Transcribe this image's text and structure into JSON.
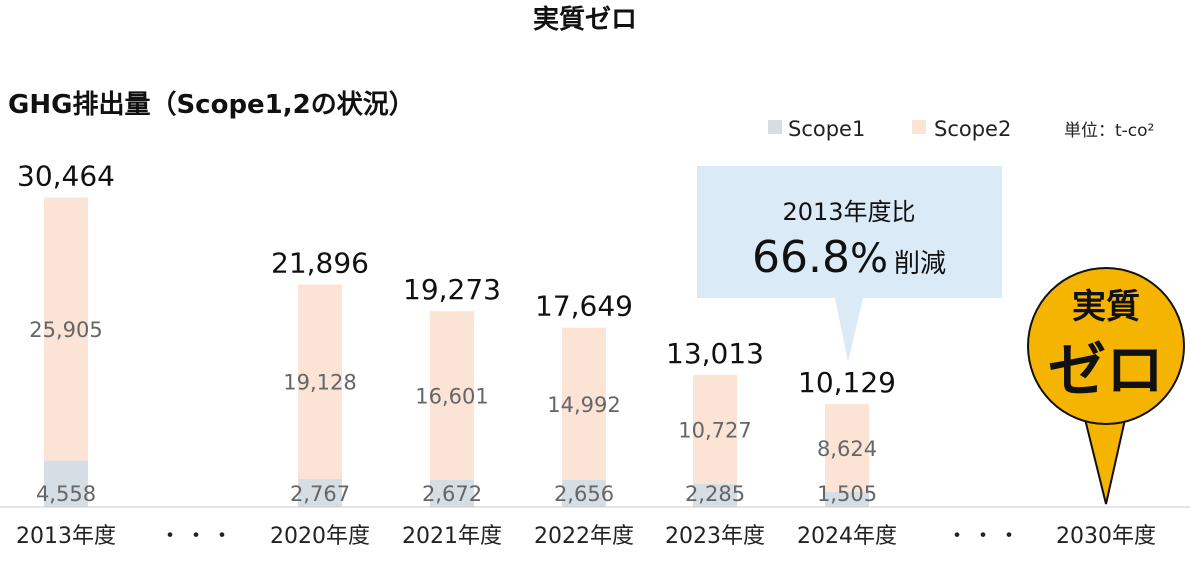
{
  "page_title": "実質ゼロ",
  "chart_data": {
    "type": "bar",
    "stacked": true,
    "title": "GHG排出量（Scope1,2の状況）",
    "unit": "単位：t-co²",
    "categories": [
      "2013年度",
      "2020年度",
      "2021年度",
      "2022年度",
      "2023年度",
      "2024年度",
      "2030年度"
    ],
    "series": [
      {
        "name": "Scope1",
        "values": [
          4558,
          2767,
          2672,
          2656,
          2285,
          1505,
          null
        ],
        "labels": [
          "4,558",
          "2,767",
          "2,672",
          "2,656",
          "2,285",
          "1,505",
          ""
        ],
        "color": "#d5dde5"
      },
      {
        "name": "Scope2",
        "values": [
          25905,
          19128,
          16601,
          14992,
          10727,
          8624,
          null
        ],
        "labels": [
          "25,905",
          "19,128",
          "16,601",
          "14,992",
          "10,727",
          "8,624",
          ""
        ],
        "color": "#fbe3d5"
      }
    ],
    "totals": [
      "30,464",
      "21,896",
      "19,273",
      "17,649",
      "13,013",
      "10,129",
      ""
    ],
    "total_values": [
      30464,
      21896,
      19273,
      17649,
      13013,
      10129,
      null
    ],
    "ellipses": [
      "・・・",
      "・・・"
    ],
    "legend_position": "top-right",
    "ylim": [
      0,
      31500
    ],
    "grid": false
  },
  "callout": {
    "line1": "2013年度比",
    "value": "66.8",
    "percent": "%",
    "suffix": "削減",
    "background": "#daeaf7"
  },
  "badge": {
    "line1": "実質",
    "line2": "ゼロ",
    "color": "#f5b400"
  }
}
